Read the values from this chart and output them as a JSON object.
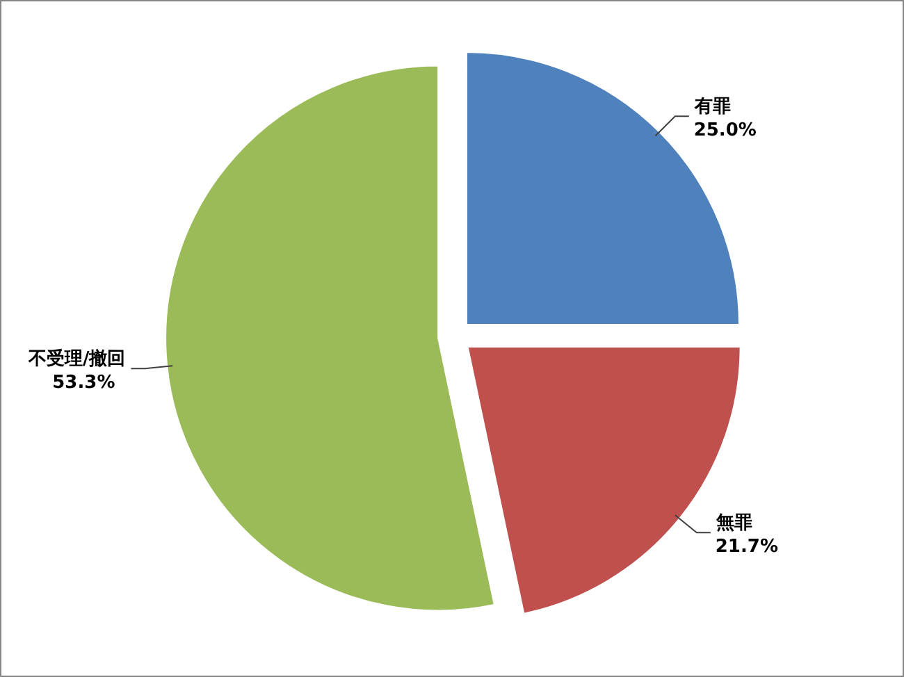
{
  "chart_data": {
    "type": "pie",
    "categories": [
      "有罪",
      "無罪",
      "不受理/撤回"
    ],
    "values": [
      25.0,
      21.7,
      53.3
    ],
    "colors": [
      "#4f81bd",
      "#c0504d",
      "#9bbb59"
    ],
    "value_labels": [
      "25.0%",
      "21.7%",
      "53.3%"
    ]
  }
}
